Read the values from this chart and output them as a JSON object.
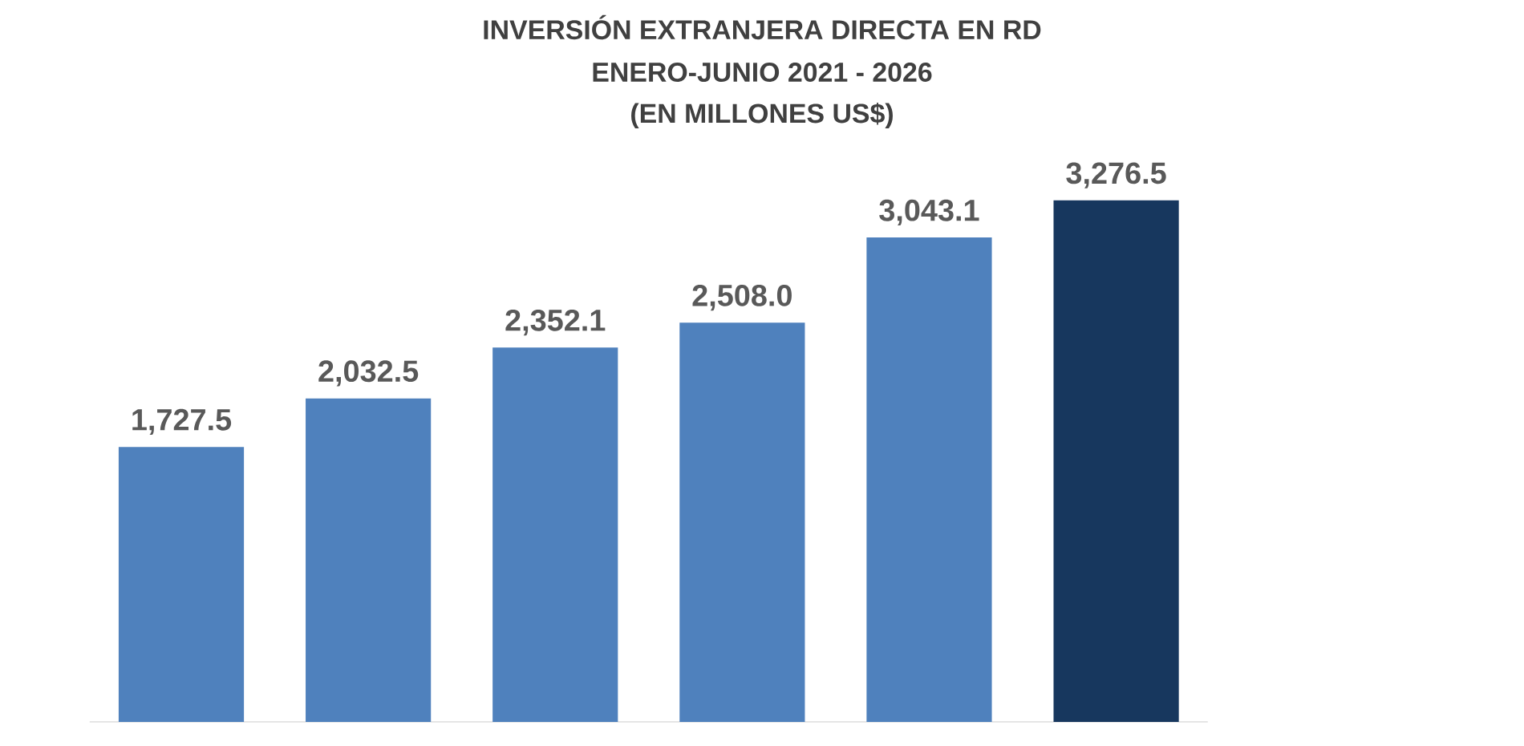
{
  "chart_data": {
    "type": "bar",
    "title": "INVERSIÓN EXTRANJERA DIRECTA EN RD",
    "subtitle": "ENERO-JUNIO 2021 - 2026",
    "annotations": [
      "(EN MILLONES US$)"
    ],
    "categories": [
      null,
      null,
      null,
      null,
      null,
      null
    ],
    "values": [
      1727.5,
      2032.5,
      2352.1,
      2508.0,
      3043.1,
      3276.5
    ],
    "value_labels": [
      "1,727.5",
      "2,032.5",
      "2,352.1",
      "2,508.0",
      "3,043.1",
      "3,276.5"
    ],
    "colors": [
      "#4f81bd",
      "#4f81bd",
      "#4f81bd",
      "#4f81bd",
      "#4f81bd",
      "#17375e"
    ]
  }
}
